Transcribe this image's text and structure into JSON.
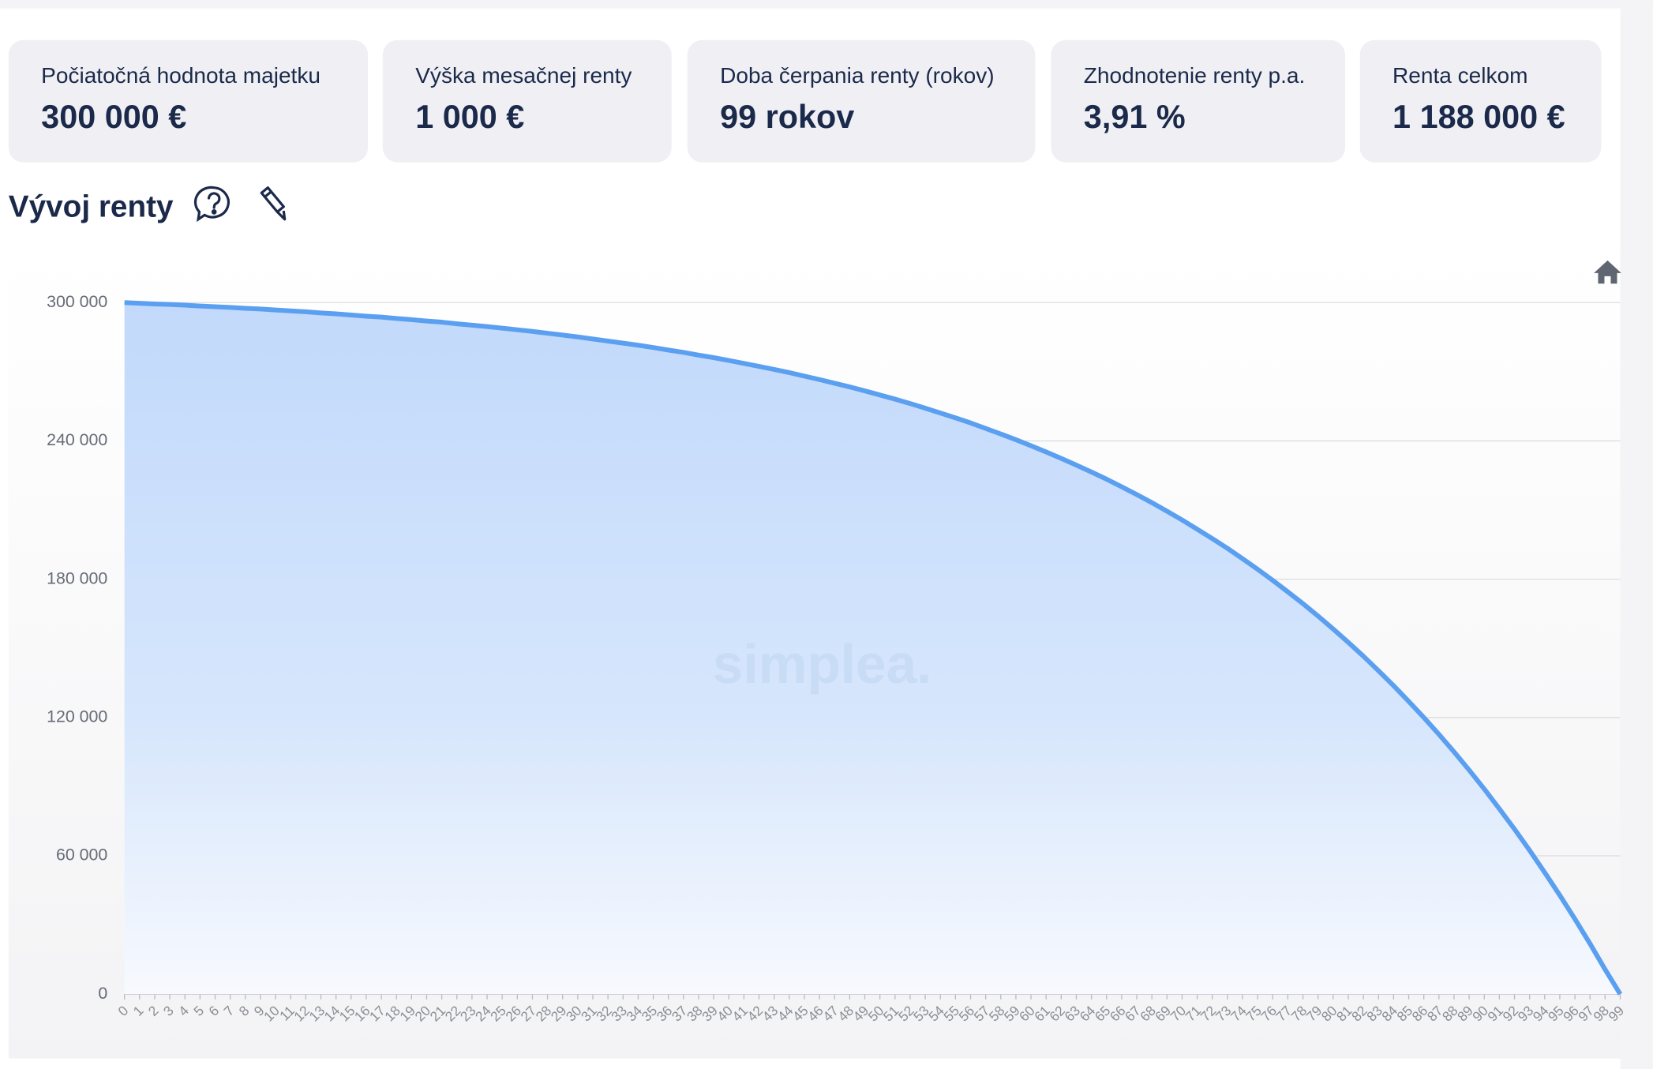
{
  "cards": [
    {
      "label": "Počiatočná hodnota majetku",
      "value": "300 000 €"
    },
    {
      "label": "Výška mesačnej renty",
      "value": "1 000 €"
    },
    {
      "label": "Doba čerpania renty (rokov)",
      "value": "99 rokov"
    },
    {
      "label": "Zhodnotenie renty p.a.",
      "value": "3,91 %"
    },
    {
      "label": "Renta celkom",
      "value": "1 188 000 €"
    }
  ],
  "section_title": "Vývoj renty",
  "watermark": "simplea.",
  "chart_data": {
    "type": "area",
    "x": [
      0,
      1,
      2,
      3,
      4,
      5,
      6,
      7,
      8,
      9,
      10,
      11,
      12,
      13,
      14,
      15,
      16,
      17,
      18,
      19,
      20,
      21,
      22,
      23,
      24,
      25,
      26,
      27,
      28,
      29,
      30,
      31,
      32,
      33,
      34,
      35,
      36,
      37,
      38,
      39,
      40,
      41,
      42,
      43,
      44,
      45,
      46,
      47,
      48,
      49,
      50,
      51,
      52,
      53,
      54,
      55,
      56,
      57,
      58,
      59,
      60,
      61,
      62,
      63,
      64,
      65,
      66,
      67,
      68,
      69,
      70,
      71,
      72,
      73,
      74,
      75,
      76,
      77,
      78,
      79,
      80,
      81,
      82,
      83,
      84,
      85,
      86,
      87,
      88,
      89,
      90,
      91,
      92,
      93,
      94,
      95,
      96,
      97,
      98,
      99
    ],
    "values": [
      300000,
      299700,
      299400,
      299200,
      298900,
      298500,
      298200,
      297900,
      297500,
      297200,
      296800,
      296400,
      296000,
      295500,
      295100,
      294600,
      294100,
      293700,
      293100,
      292600,
      292000,
      291500,
      290800,
      290200,
      289600,
      288900,
      288200,
      287500,
      286700,
      285900,
      285100,
      284200,
      283300,
      282400,
      281500,
      280500,
      279400,
      278400,
      277200,
      276100,
      274900,
      273600,
      272300,
      271000,
      269600,
      268100,
      266600,
      265000,
      263400,
      261700,
      259900,
      258100,
      256200,
      254200,
      252100,
      250000,
      247800,
      245400,
      243000,
      240500,
      237900,
      235200,
      232400,
      229500,
      226500,
      223400,
      220100,
      216700,
      213200,
      209500,
      205700,
      201700,
      197600,
      193400,
      188900,
      184300,
      179500,
      174500,
      169400,
      164000,
      158400,
      152600,
      146600,
      140300,
      133800,
      127000,
      120000,
      112700,
      105100,
      97200,
      89000,
      80400,
      71600,
      62400,
      52800,
      42900,
      32600,
      21900,
      10700,
      0
    ],
    "color": "#5b9ff0",
    "xlim": [
      0,
      99
    ],
    "ylim": [
      0,
      300000
    ],
    "yticks": [
      0,
      {
        "value": 60000,
        "label": "60 000"
      },
      {
        "value": 120000,
        "label": "120 000"
      },
      {
        "value": 180000,
        "label": "180 000"
      },
      {
        "value": 240000,
        "label": "240 000"
      },
      {
        "value": 300000,
        "label": "300 000"
      }
    ],
    "grid": true
  }
}
